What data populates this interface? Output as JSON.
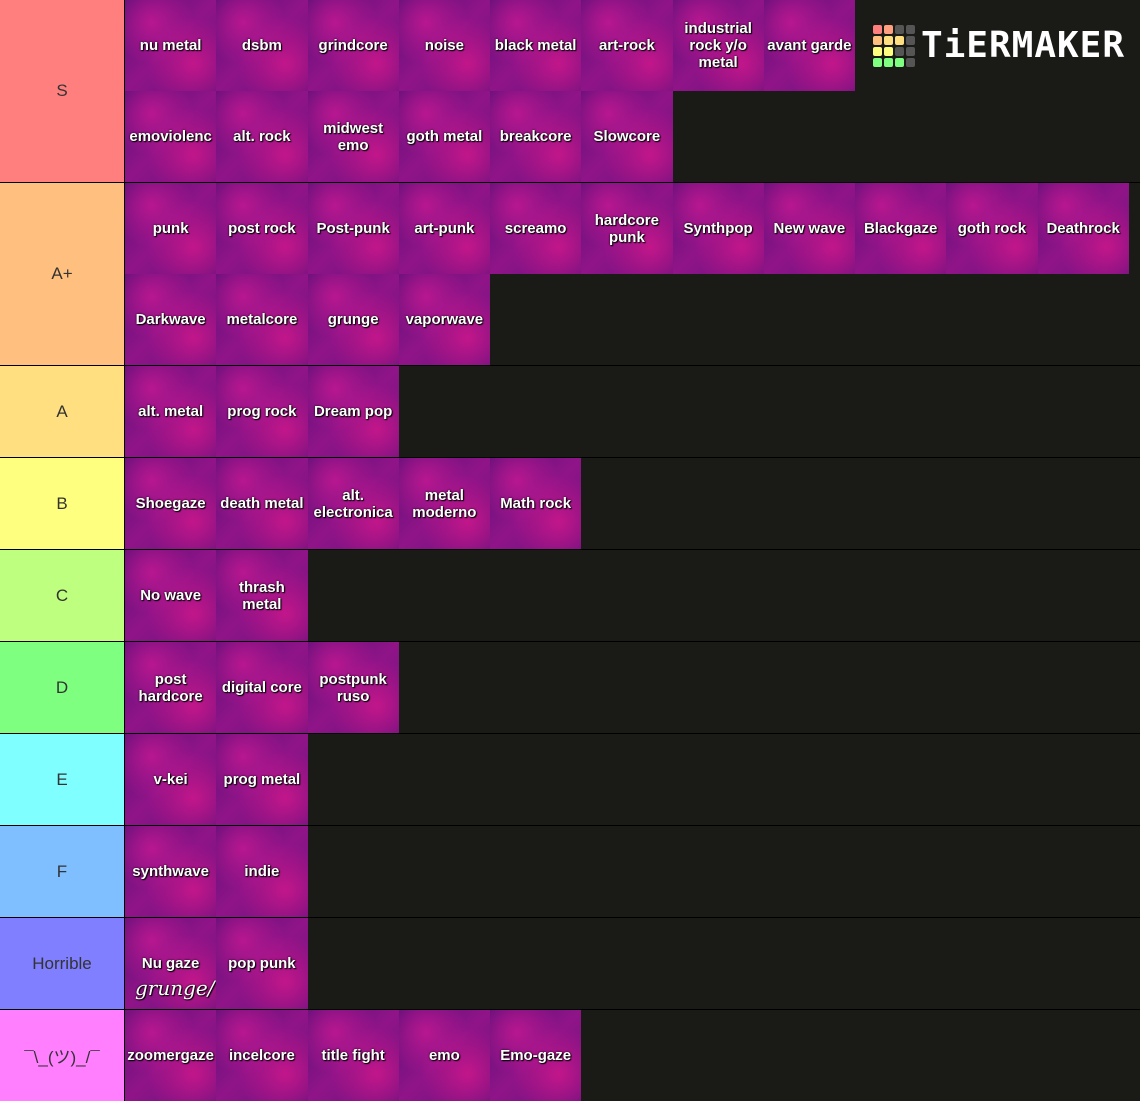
{
  "header": {
    "logo": "TiERMAKER"
  },
  "tiers": [
    {
      "label": "S",
      "color": "#ff7f7f",
      "items": [
        {
          "text": "nu metal"
        },
        {
          "text": "dsbm"
        },
        {
          "text": "grindcore"
        },
        {
          "text": "noise"
        },
        {
          "text": "black metal"
        },
        {
          "text": "art-rock"
        },
        {
          "text": "industrial rock y/o metal"
        },
        {
          "text": "avant garde"
        },
        {
          "text": "emoviolenc"
        },
        {
          "text": "alt. rock"
        },
        {
          "text": "midwest emo"
        },
        {
          "text": "goth metal"
        },
        {
          "text": "breakcore"
        },
        {
          "text": "Slowcore"
        }
      ]
    },
    {
      "label": "A+",
      "color": "#ffbf7f",
      "items": [
        {
          "text": "punk"
        },
        {
          "text": "post rock"
        },
        {
          "text": "Post-punk"
        },
        {
          "text": "art-punk"
        },
        {
          "text": "screamo"
        },
        {
          "text": "hardcore punk"
        },
        {
          "text": "Synthpop"
        },
        {
          "text": "New wave"
        },
        {
          "text": "Blackgaze"
        },
        {
          "text": "goth rock"
        },
        {
          "text": "Deathrock"
        },
        {
          "text": "Darkwave"
        },
        {
          "text": "metalcore"
        },
        {
          "text": "grunge"
        },
        {
          "text": "vaporwave"
        }
      ]
    },
    {
      "label": "A",
      "color": "#ffdf7f",
      "items": [
        {
          "text": "alt. metal"
        },
        {
          "text": "prog rock"
        },
        {
          "text": "Dream pop"
        }
      ]
    },
    {
      "label": "B",
      "color": "#ffff7f",
      "items": [
        {
          "text": "Shoegaze"
        },
        {
          "text": "death metal"
        },
        {
          "text": "alt. electronica"
        },
        {
          "text": "metal moderno"
        },
        {
          "text": "Math rock"
        }
      ]
    },
    {
      "label": "C",
      "color": "#bfff7f",
      "items": [
        {
          "text": "No wave"
        },
        {
          "text": "thrash metal"
        }
      ]
    },
    {
      "label": "D",
      "color": "#7fff7f",
      "items": [
        {
          "text": "post hardcore"
        },
        {
          "text": "digital core"
        },
        {
          "text": "postpunk ruso"
        }
      ]
    },
    {
      "label": "E",
      "color": "#7fffff",
      "items": [
        {
          "text": "v-kei"
        },
        {
          "text": "prog metal"
        }
      ]
    },
    {
      "label": "F",
      "color": "#7fbfff",
      "items": [
        {
          "text": "synthwave"
        },
        {
          "text": "indie"
        }
      ]
    },
    {
      "label": "Horrible",
      "color": "#7f7fff",
      "items": [
        {
          "text": "Nu gaze",
          "note": "grunge/"
        },
        {
          "text": "pop punk"
        }
      ]
    },
    {
      "label": "¯\\_(ツ)_/¯",
      "color": "#ff7fff",
      "items": [
        {
          "text": "zoomergaze"
        },
        {
          "text": "incelcore"
        },
        {
          "text": "title fight"
        },
        {
          "text": "emo"
        },
        {
          "text": "Emo-gaze"
        }
      ]
    }
  ]
}
